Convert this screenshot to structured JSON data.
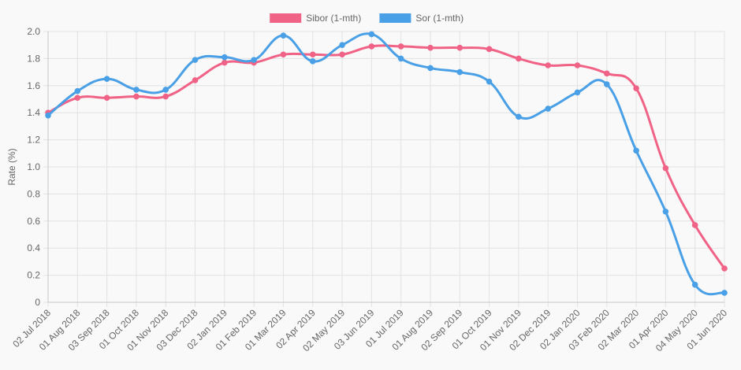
{
  "chart_data": {
    "type": "line",
    "title": "",
    "xlabel": "",
    "ylabel": "Rate (%)",
    "ylim": [
      0,
      2.0
    ],
    "yticks": [
      0,
      0.2,
      0.4,
      0.6,
      0.8,
      1.0,
      1.2,
      1.4,
      1.6,
      1.8,
      2.0
    ],
    "ytick_labels": [
      "0",
      "0.2",
      "0.4",
      "0.6",
      "0.8",
      "1.0",
      "1.2",
      "1.4",
      "1.6",
      "1.8",
      "2.0"
    ],
    "grid": true,
    "legend_position": "top-center",
    "categories": [
      "02 Jul 2018",
      "01 Aug 2018",
      "03 Sep 2018",
      "01 Oct 2018",
      "01 Nov 2018",
      "03 Dec 2018",
      "02 Jan 2019",
      "01 Feb 2019",
      "01 Mar 2019",
      "02 Apr 2019",
      "02 May 2019",
      "03 Jun 2019",
      "01 Jul 2019",
      "01 Aug 2019",
      "02 Sep 2019",
      "01 Oct 2019",
      "01 Nov 2019",
      "02 Dec 2019",
      "02 Jan 2020",
      "03 Feb 2020",
      "02 Mar 2020",
      "01 Apr 2020",
      "04 May 2020",
      "01 Jun 2020"
    ],
    "series": [
      {
        "name": "Sibor (1-mth)",
        "color": "#f06286",
        "values": [
          1.4,
          1.51,
          1.51,
          1.52,
          1.52,
          1.64,
          1.77,
          1.77,
          1.83,
          1.83,
          1.83,
          1.89,
          1.89,
          1.88,
          1.88,
          1.87,
          1.8,
          1.75,
          1.75,
          1.69,
          1.58,
          0.99,
          0.57,
          0.25
        ]
      },
      {
        "name": "Sor (1-mth)",
        "color": "#4aa0e6",
        "values": [
          1.38,
          1.56,
          1.65,
          1.57,
          1.57,
          1.79,
          1.81,
          1.79,
          1.97,
          1.78,
          1.9,
          1.98,
          1.8,
          1.73,
          1.7,
          1.63,
          1.37,
          1.43,
          1.55,
          1.61,
          1.12,
          0.67,
          0.13,
          0.07
        ]
      }
    ]
  }
}
